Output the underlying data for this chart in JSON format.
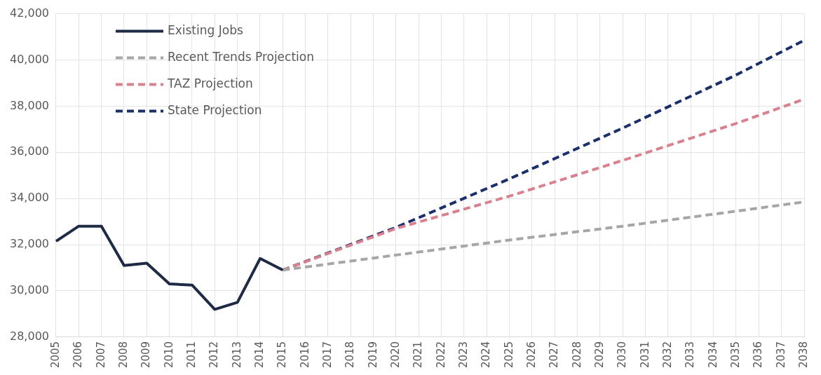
{
  "chart_data": {
    "type": "line",
    "categories": [
      "2005",
      "2006",
      "2007",
      "2008",
      "2009",
      "2010",
      "2011",
      "2012",
      "2013",
      "2014",
      "2015",
      "2016",
      "2017",
      "2018",
      "2019",
      "2020",
      "2021",
      "2022",
      "2023",
      "2024",
      "2025",
      "2026",
      "2027",
      "2028",
      "2029",
      "2030",
      "2031",
      "2032",
      "2033",
      "2034",
      "2035",
      "2036",
      "2037",
      "2038"
    ],
    "series": [
      {
        "name": "Existing Jobs",
        "color": "#1f2a44",
        "line_style": "solid",
        "values": [
          32150,
          32800,
          32800,
          31100,
          31200,
          30300,
          30250,
          29200,
          29500,
          31400,
          30900,
          null,
          null,
          null,
          null,
          null,
          null,
          null,
          null,
          null,
          null,
          null,
          null,
          null,
          null,
          null,
          null,
          null,
          null,
          null,
          null,
          null,
          null,
          null
        ]
      },
      {
        "name": "Recent Trends Projection",
        "color": "#a6a6a6",
        "line_style": "dashed",
        "values": [
          null,
          null,
          null,
          null,
          null,
          null,
          null,
          null,
          null,
          null,
          30900,
          null,
          null,
          null,
          null,
          31550,
          null,
          null,
          null,
          null,
          32200,
          null,
          null,
          null,
          null,
          32800,
          null,
          null,
          null,
          null,
          33450,
          null,
          null,
          33850
        ]
      },
      {
        "name": "TAZ Projection",
        "color": "#d9818f",
        "line_style": "dashed",
        "values": [
          null,
          null,
          null,
          null,
          null,
          null,
          null,
          null,
          null,
          null,
          30900,
          null,
          null,
          null,
          null,
          32700,
          null,
          null,
          null,
          null,
          34100,
          null,
          null,
          null,
          null,
          35650,
          null,
          null,
          null,
          null,
          37250,
          null,
          null,
          38300
        ]
      },
      {
        "name": "State Projection",
        "color": "#1b2f6b",
        "line_style": "dashed",
        "values": [
          null,
          null,
          null,
          null,
          null,
          null,
          null,
          null,
          null,
          null,
          30900,
          null,
          null,
          null,
          null,
          32750,
          null,
          null,
          null,
          null,
          34850,
          null,
          null,
          null,
          null,
          37050,
          null,
          null,
          null,
          null,
          39350,
          null,
          null,
          40850
        ]
      }
    ],
    "ylim": [
      28000,
      42000
    ],
    "yticks": [
      {
        "value": 28000,
        "label": "28,000"
      },
      {
        "value": 30000,
        "label": "30,000"
      },
      {
        "value": 32000,
        "label": "32,000"
      },
      {
        "value": 34000,
        "label": "34,000"
      },
      {
        "value": 36000,
        "label": "36,000"
      },
      {
        "value": 38000,
        "label": "38,000"
      },
      {
        "value": 40000,
        "label": "40,000"
      },
      {
        "value": 42000,
        "label": "42,000"
      }
    ],
    "grid": true,
    "legend": "top left",
    "marker": "none"
  }
}
